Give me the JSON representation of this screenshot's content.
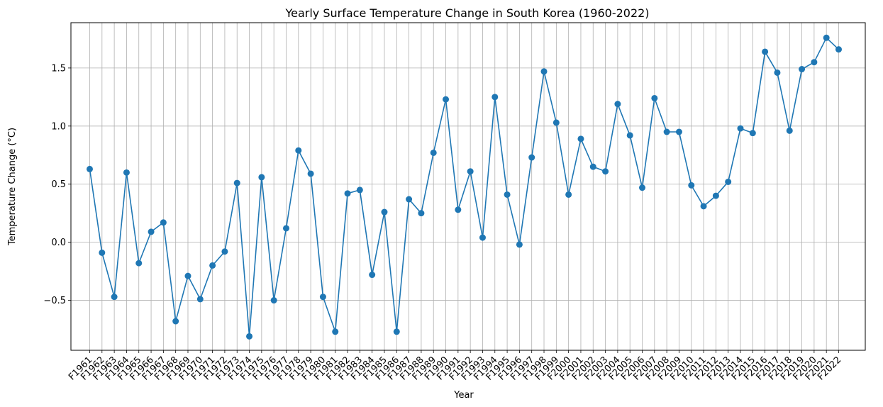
{
  "chart_data": {
    "type": "line",
    "title": "Yearly Surface Temperature Change in South Korea (1960-2022)",
    "xlabel": "Year",
    "ylabel": "Temperature Change (°C)",
    "categories": [
      "F1961",
      "F1962",
      "F1963",
      "F1964",
      "F1965",
      "F1966",
      "F1967",
      "F1968",
      "F1969",
      "F1970",
      "F1971",
      "F1972",
      "F1973",
      "F1974",
      "F1975",
      "F1976",
      "F1977",
      "F1978",
      "F1979",
      "F1980",
      "F1981",
      "F1982",
      "F1983",
      "F1984",
      "F1985",
      "F1986",
      "F1987",
      "F1988",
      "F1989",
      "F1990",
      "F1991",
      "F1992",
      "F1993",
      "F1994",
      "F1995",
      "F1996",
      "F1997",
      "F1998",
      "F1999",
      "F2000",
      "F2001",
      "F2002",
      "F2003",
      "F2004",
      "F2005",
      "F2006",
      "F2007",
      "F2008",
      "F2009",
      "F2010",
      "F2011",
      "F2012",
      "F2013",
      "F2014",
      "F2015",
      "F2016",
      "F2017",
      "F2018",
      "F2019",
      "F2020",
      "F2021",
      "F2022"
    ],
    "values": [
      0.63,
      -0.09,
      -0.47,
      0.6,
      -0.18,
      0.09,
      0.17,
      -0.68,
      -0.29,
      -0.49,
      -0.2,
      -0.08,
      0.51,
      -0.81,
      0.56,
      -0.5,
      0.12,
      0.79,
      0.59,
      -0.47,
      -0.77,
      0.42,
      0.45,
      -0.28,
      0.26,
      -0.77,
      0.37,
      0.25,
      0.77,
      1.23,
      0.28,
      0.61,
      0.04,
      1.25,
      0.41,
      -0.02,
      0.73,
      1.47,
      1.03,
      0.41,
      0.89,
      0.65,
      0.61,
      1.19,
      0.92,
      0.47,
      1.24,
      0.95,
      0.95,
      0.49,
      0.31,
      0.4,
      0.52,
      0.98,
      0.94,
      1.64,
      1.46,
      0.96,
      1.49,
      1.55,
      1.76,
      1.66
    ],
    "yticks": [
      -0.5,
      0.0,
      0.5,
      1.0,
      1.5
    ],
    "ytick_labels": [
      "−0.5",
      "0.0",
      "0.5",
      "1.0",
      "1.5"
    ],
    "ylim": [
      -0.93,
      1.89
    ],
    "grid": true,
    "color": "#1f77b4",
    "marker": "circle"
  }
}
